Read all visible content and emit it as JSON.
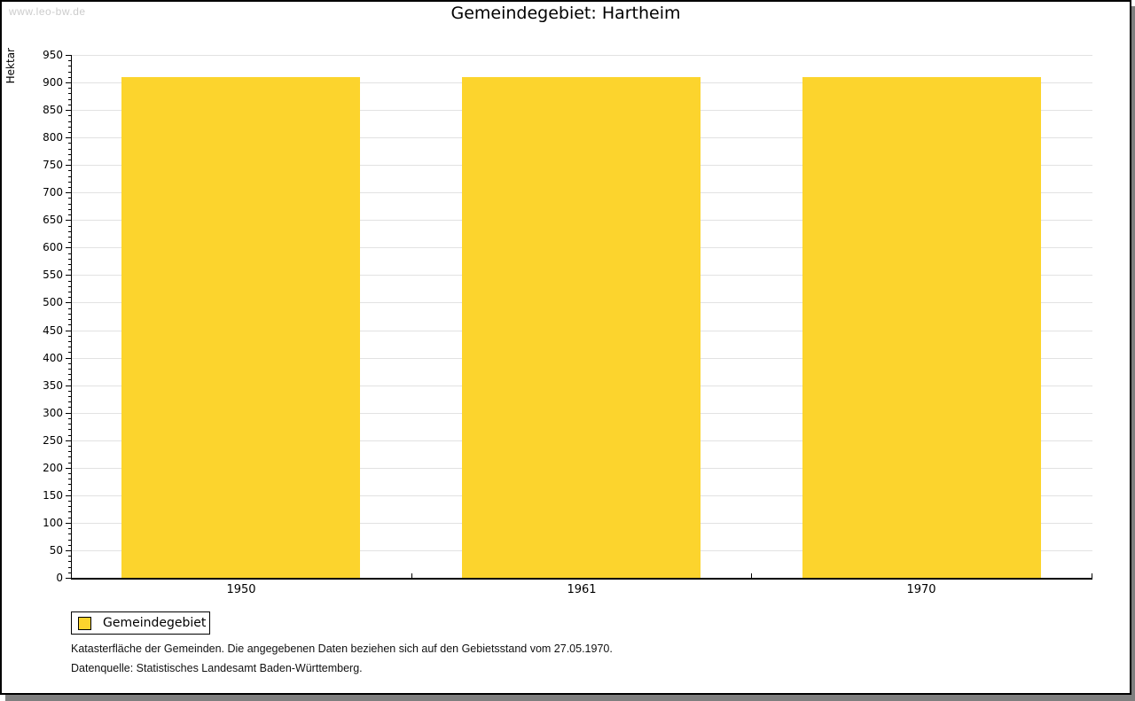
{
  "watermark": "www.leo-bw.de",
  "title": "Gemeindegebiet: Hartheim",
  "chart_data": {
    "type": "bar",
    "title": "Gemeindegebiet: Hartheim",
    "categories": [
      "1950",
      "1961",
      "1970"
    ],
    "series": [
      {
        "name": "Gemeindegebiet",
        "values": [
          910,
          910,
          910
        ]
      }
    ],
    "xlabel": "",
    "ylabel": "Hektar",
    "ylim": [
      0,
      950
    ],
    "y_major_step": 50,
    "y_minor_step": 10,
    "grid": true,
    "legend_position": "bottom-left",
    "bar_color": "#FCD42D"
  },
  "legend": {
    "items": [
      {
        "label": "Gemeindegebiet",
        "color": "#FCD42D"
      }
    ]
  },
  "footnotes": [
    "Katasterfläche der Gemeinden. Die angegebenen Daten beziehen sich auf den Gebietsstand vom 27.05.1970.",
    "Datenquelle: Statistisches Landesamt Baden-Württemberg."
  ],
  "colors": {
    "bar": "#FCD42D",
    "grid": "#e2e2e2",
    "axis": "#000000",
    "watermark": "#cccccc",
    "frame_border": "#000000",
    "frame_shadow": "#7f7f7f",
    "background": "#ffffff"
  }
}
